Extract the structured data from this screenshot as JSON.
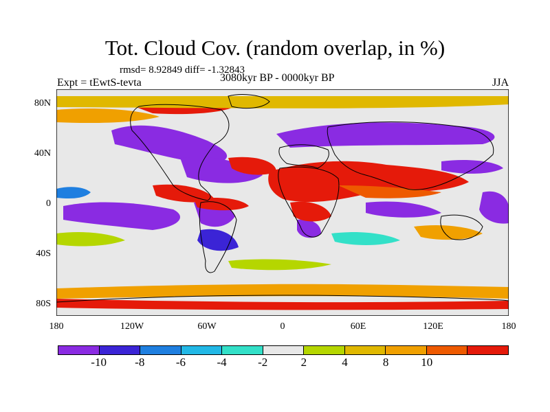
{
  "title": "Tot. Cloud Cov. (random overlap, in %)",
  "stats": "rmsd= 8.92849 diff= -1.32843",
  "experiment": "Expt = tEwtS-tevta",
  "period": "3080kyr BP - 0000kyr BP",
  "season": "JJA",
  "lat_ticks": [
    "80N",
    "40N",
    "0",
    "40S",
    "80S"
  ],
  "lon_ticks": [
    "180",
    "120W",
    "60W",
    "0",
    "60E",
    "120E",
    "180"
  ],
  "colorbar": {
    "colors": [
      "#8a2be2",
      "#3b24d6",
      "#1f7fe0",
      "#22b8e6",
      "#33e0c8",
      "#e8e8e8",
      "#b5d600",
      "#e0b800",
      "#f0a000",
      "#ee5a00",
      "#e51a0a"
    ],
    "labels": [
      "-10",
      "-8",
      "-6",
      "-4",
      "-2",
      "2",
      "4",
      "8",
      "10"
    ]
  }
}
